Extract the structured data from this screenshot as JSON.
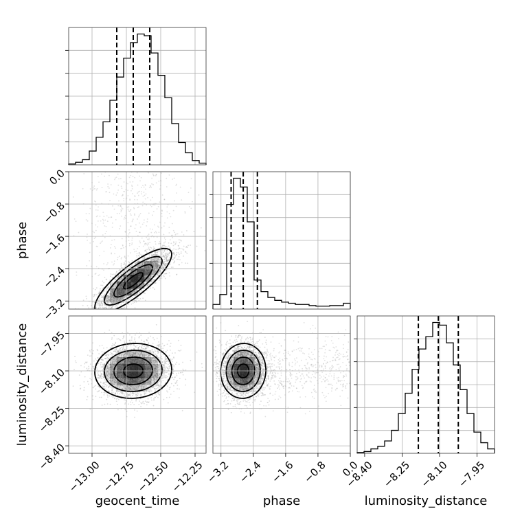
{
  "chart_data": {
    "type": "corner",
    "parameters": [
      "geocent_time",
      "phase",
      "luminosity_distance"
    ],
    "ranges": {
      "geocent_time": [
        -13.17,
        -12.17
      ],
      "phase": [
        -3.4,
        0.0
      ],
      "luminosity_distance": [
        -8.43,
        -7.88
      ]
    },
    "ticks": {
      "geocent_time": [
        -13.0,
        -12.75,
        -12.5,
        -12.25
      ],
      "phase": [
        -3.2,
        -2.4,
        -1.6,
        -0.8,
        0.0
      ],
      "luminosity_distance": [
        -8.4,
        -8.25,
        -8.1,
        -7.95
      ]
    },
    "tick_labels": {
      "geocent_time": [
        "−13.00",
        "−12.75",
        "−12.50",
        "−12.25"
      ],
      "phase": [
        "−3.2",
        "−2.4",
        "−1.6",
        "−0.8",
        "0.0"
      ],
      "luminosity_distance": [
        "−8.40",
        "−8.25",
        "−8.10",
        "−7.95"
      ]
    },
    "axis_labels": {
      "geocent_time": "geocent_time",
      "phase": "phase",
      "luminosity_distance": "luminosity_distance"
    },
    "histograms": {
      "geocent_time": {
        "bin_edges": [
          -13.17,
          -13.12,
          -13.07,
          -13.02,
          -12.97,
          -12.92,
          -12.87,
          -12.82,
          -12.77,
          -12.72,
          -12.67,
          -12.62,
          -12.57,
          -12.52,
          -12.47,
          -12.42,
          -12.37,
          -12.32,
          -12.27,
          -12.22,
          -12.17
        ],
        "counts": [
          1,
          3,
          6,
          16,
          32,
          50,
          75,
          102,
          124,
          142,
          152,
          150,
          130,
          104,
          78,
          48,
          26,
          14,
          5,
          2
        ]
      },
      "phase": {
        "bin_edges": [
          -3.4,
          -3.23,
          -3.06,
          -2.89,
          -2.72,
          -2.55,
          -2.38,
          -2.21,
          -2.04,
          -1.87,
          -1.7,
          -1.53,
          -1.36,
          -1.19,
          -1.02,
          -0.85,
          -0.68,
          -0.51,
          -0.34,
          -0.17,
          0.0
        ],
        "counts": [
          8,
          25,
          180,
          225,
          210,
          150,
          50,
          30,
          20,
          15,
          12,
          10,
          8,
          8,
          6,
          5,
          5,
          6,
          6,
          10
        ]
      },
      "luminosity_distance": {
        "bin_edges": [
          -8.43,
          -8.4025,
          -8.375,
          -8.3475,
          -8.32,
          -8.2925,
          -8.265,
          -8.2375,
          -8.21,
          -8.1825,
          -8.155,
          -8.1275,
          -8.1,
          -8.0725,
          -8.045,
          -8.0175,
          -7.99,
          -7.9625,
          -7.935,
          -7.9075,
          -7.88
        ],
        "counts": [
          1,
          2,
          5,
          8,
          14,
          26,
          45,
          68,
          95,
          118,
          132,
          148,
          145,
          125,
          100,
          72,
          45,
          24,
          12,
          5
        ]
      }
    },
    "quantiles": {
      "geocent_time": [
        -12.82,
        -12.7,
        -12.58
      ],
      "phase": [
        -2.95,
        -2.65,
        -2.3
      ],
      "luminosity_distance": [
        -8.185,
        -8.105,
        -8.025
      ]
    },
    "joint": [
      {
        "x": "geocent_time",
        "y": "phase",
        "mean": [
          -12.7,
          -2.7
        ],
        "sd": [
          0.14,
          0.4
        ],
        "corr": 0.82,
        "contour_levels_sigma": [
          0.5,
          1.0,
          1.5,
          2.0
        ]
      },
      {
        "x": "geocent_time",
        "y": "luminosity_distance",
        "mean": [
          -12.7,
          -8.1
        ],
        "sd": [
          0.14,
          0.055
        ],
        "corr": 0.05,
        "contour_levels_sigma": [
          0.5,
          1.0,
          1.5,
          2.0
        ]
      },
      {
        "x": "phase",
        "y": "luminosity_distance",
        "mean": [
          -2.65,
          -8.1
        ],
        "sd": [
          0.28,
          0.055
        ],
        "corr": 0.03,
        "contour_levels_sigma": [
          0.5,
          1.0,
          1.5,
          2.0
        ]
      }
    ],
    "grid": true
  },
  "colors": {
    "line": "#000000",
    "grid": "#b0b0b0",
    "scatter": "#9a9a9a",
    "density": "#000000"
  }
}
